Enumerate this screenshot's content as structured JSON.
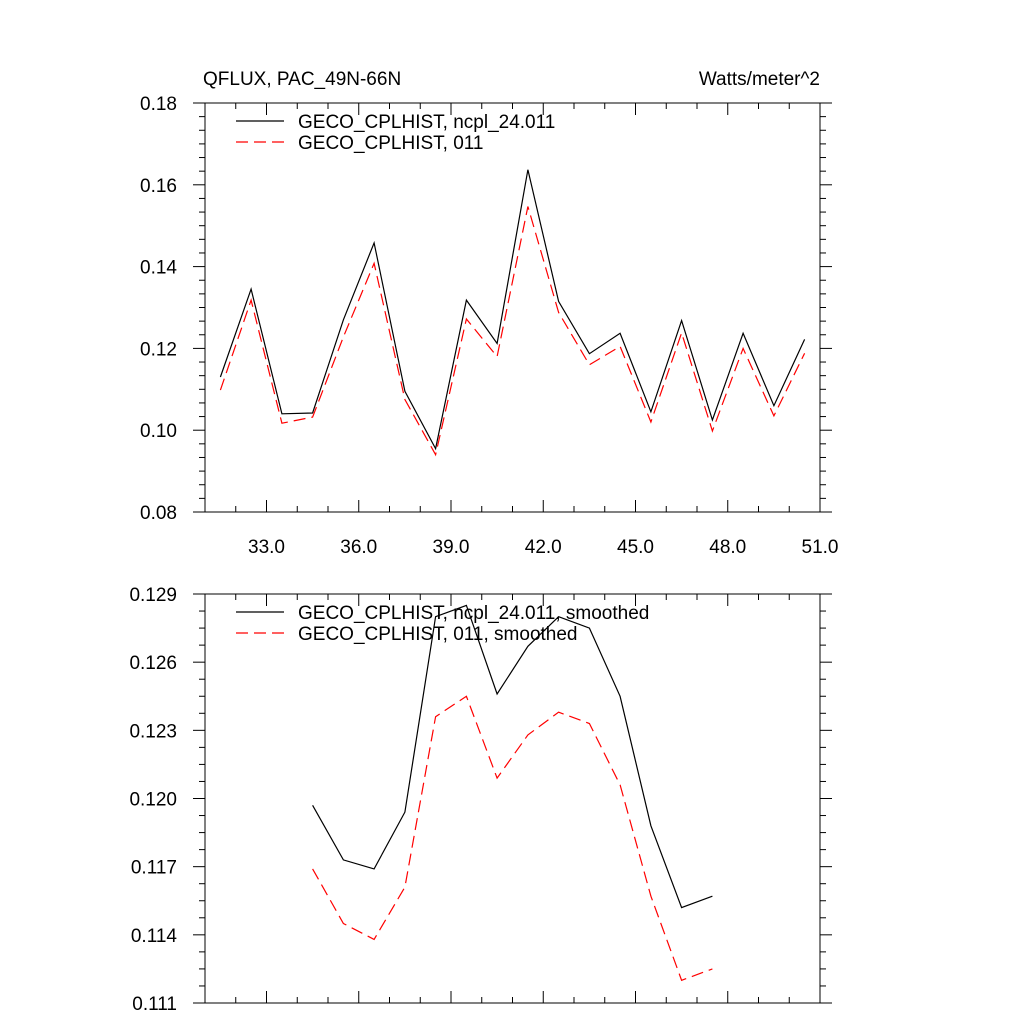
{
  "title": "QFLUX, PAC_49N-66N",
  "units": "Watts/meter^2",
  "colors": {
    "series1": "#000000",
    "series2": "#ff0000"
  },
  "chart_data": [
    {
      "type": "line",
      "xlim": [
        31.0,
        51.0
      ],
      "ylim": [
        0.08,
        0.18
      ],
      "xticks": [
        33.0,
        36.0,
        39.0,
        42.0,
        45.0,
        48.0,
        51.0
      ],
      "xtick_labels": [
        "33.0",
        "36.0",
        "39.0",
        "42.0",
        "45.0",
        "48.0",
        "51.0"
      ],
      "yticks": [
        0.08,
        0.1,
        0.12,
        0.14,
        0.16,
        0.18
      ],
      "ytick_labels": [
        "0.08",
        "0.10",
        "0.12",
        "0.14",
        "0.16",
        "0.18"
      ],
      "grid": false,
      "legend_position": "top-left",
      "x": [
        31.5,
        32.5,
        33.5,
        34.5,
        35.5,
        36.5,
        37.5,
        38.5,
        39.5,
        40.5,
        41.5,
        42.5,
        43.5,
        44.5,
        45.5,
        46.5,
        47.5,
        48.5,
        49.5,
        50.5
      ],
      "series": [
        {
          "name": "GECO_CPLHIST, ncpl_24.011",
          "style": "solid",
          "values": [
            0.113,
            0.1345,
            0.104,
            0.1042,
            0.127,
            0.1458,
            0.1095,
            0.0955,
            0.1318,
            0.1212,
            0.1637,
            0.1315,
            0.1187,
            0.1237,
            0.1045,
            0.1268,
            0.1025,
            0.1237,
            0.106,
            0.1222
          ]
        },
        {
          "name": "GECO_CPLHIST, 011",
          "style": "dashed",
          "values": [
            0.1098,
            0.1318,
            0.1017,
            0.1032,
            0.1228,
            0.1408,
            0.1075,
            0.094,
            0.1272,
            0.118,
            0.1547,
            0.1288,
            0.116,
            0.1205,
            0.102,
            0.1238,
            0.0998,
            0.12,
            0.1035,
            0.1188
          ]
        }
      ]
    },
    {
      "type": "line",
      "xlim": [
        31.0,
        51.0
      ],
      "ylim": [
        0.111,
        0.129
      ],
      "xticks": [
        33.0,
        36.0,
        39.0,
        42.0,
        45.0,
        48.0,
        51.0
      ],
      "xtick_labels": [],
      "yticks": [
        0.111,
        0.114,
        0.117,
        0.12,
        0.123,
        0.126,
        0.129
      ],
      "ytick_labels": [
        "0.111",
        "0.114",
        "0.117",
        "0.120",
        "0.123",
        "0.126",
        "0.129"
      ],
      "grid": false,
      "legend_position": "top-left",
      "x": [
        34.5,
        35.5,
        36.5,
        37.5,
        38.5,
        39.5,
        40.5,
        41.5,
        42.5,
        43.5,
        44.5,
        45.5,
        46.5,
        47.5
      ],
      "series": [
        {
          "name": "GECO_CPLHIST, ncpl_24.011, smoothed",
          "style": "solid",
          "values": [
            0.1197,
            0.1173,
            0.1169,
            0.1194,
            0.128,
            0.1285,
            0.1246,
            0.1267,
            0.128,
            0.1275,
            0.1245,
            0.1188,
            0.1152,
            0.1157
          ]
        },
        {
          "name": "GECO_CPLHIST, 011, smoothed",
          "style": "dashed",
          "values": [
            0.1169,
            0.1145,
            0.1138,
            0.1161,
            0.1236,
            0.1245,
            0.1209,
            0.1228,
            0.1238,
            0.1233,
            0.1206,
            0.1157,
            0.112,
            0.1125
          ]
        }
      ]
    }
  ]
}
